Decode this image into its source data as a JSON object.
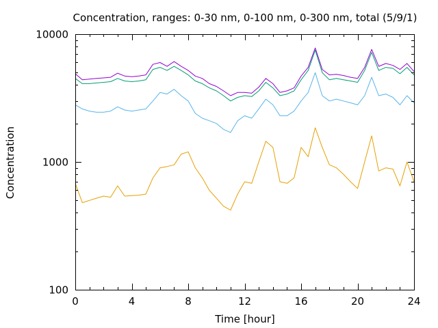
{
  "chart_data": {
    "type": "line",
    "title": "Concentration, ranges: 0-30 nm, 0-100 nm, 0-300 nm, total (5/9/1)",
    "xlabel": "Time [hour]",
    "ylabel": "Concentration",
    "xlim": [
      0,
      24
    ],
    "ylim": [
      100,
      10000
    ],
    "yscale": "log",
    "grid": false,
    "legend": "none",
    "x_ticks": [
      "0",
      "4",
      "8",
      "12",
      "16",
      "20",
      "24"
    ],
    "y_ticks": [
      "100",
      "1000",
      "10000"
    ],
    "x": [
      0,
      0.5,
      1,
      1.5,
      2,
      2.5,
      3,
      3.5,
      4,
      4.5,
      5,
      5.5,
      6,
      6.5,
      7,
      7.5,
      8,
      8.5,
      9,
      9.5,
      10,
      10.5,
      11,
      11.5,
      12,
      12.5,
      13,
      13.5,
      14,
      14.5,
      15,
      15.5,
      16,
      16.5,
      17,
      17.5,
      18,
      18.5,
      19,
      19.5,
      20,
      20.5,
      21,
      21.5,
      22,
      22.5,
      23,
      23.5,
      24
    ],
    "series": [
      {
        "color": "#e69f00",
        "values": [
          680,
          480,
          500,
          520,
          540,
          530,
          650,
          540,
          545,
          550,
          560,
          750,
          900,
          920,
          950,
          1150,
          1200,
          900,
          750,
          600,
          520,
          450,
          420,
          560,
          700,
          680,
          1000,
          1450,
          1300,
          700,
          680,
          750,
          1300,
          1100,
          1850,
          1300,
          950,
          900,
          800,
          700,
          620,
          1000,
          1600,
          850,
          900,
          880,
          650,
          1000,
          700
        ]
      },
      {
        "color": "#56b4e9",
        "values": [
          2800,
          2600,
          2500,
          2450,
          2450,
          2500,
          2700,
          2550,
          2500,
          2550,
          2600,
          3000,
          3500,
          3400,
          3700,
          3300,
          3000,
          2400,
          2200,
          2100,
          2000,
          1800,
          1700,
          2100,
          2300,
          2200,
          2600,
          3100,
          2800,
          2300,
          2300,
          2500,
          3000,
          3500,
          5000,
          3300,
          3000,
          3100,
          3000,
          2900,
          2800,
          3300,
          4600,
          3300,
          3400,
          3200,
          2800,
          3300,
          2900
        ]
      },
      {
        "color": "#009e73",
        "values": [
          4500,
          4100,
          4100,
          4150,
          4200,
          4250,
          4500,
          4300,
          4250,
          4300,
          4400,
          5300,
          5500,
          5200,
          5600,
          5200,
          4800,
          4300,
          4100,
          3800,
          3600,
          3300,
          3000,
          3200,
          3300,
          3250,
          3600,
          4200,
          3800,
          3300,
          3400,
          3600,
          4400,
          5200,
          7500,
          5000,
          4400,
          4500,
          4400,
          4300,
          4200,
          5200,
          7200,
          5200,
          5500,
          5400,
          4900,
          5500,
          4800
        ]
      },
      {
        "color": "#9400d3",
        "values": [
          4900,
          4400,
          4450,
          4500,
          4550,
          4600,
          4950,
          4700,
          4650,
          4700,
          4800,
          5800,
          6000,
          5600,
          6100,
          5600,
          5200,
          4700,
          4500,
          4100,
          3900,
          3600,
          3300,
          3500,
          3500,
          3450,
          3850,
          4500,
          4100,
          3500,
          3600,
          3800,
          4700,
          5500,
          7800,
          5300,
          4800,
          4850,
          4750,
          4600,
          4500,
          5500,
          7600,
          5600,
          5900,
          5700,
          5300,
          5900,
          5100
        ]
      }
    ]
  }
}
